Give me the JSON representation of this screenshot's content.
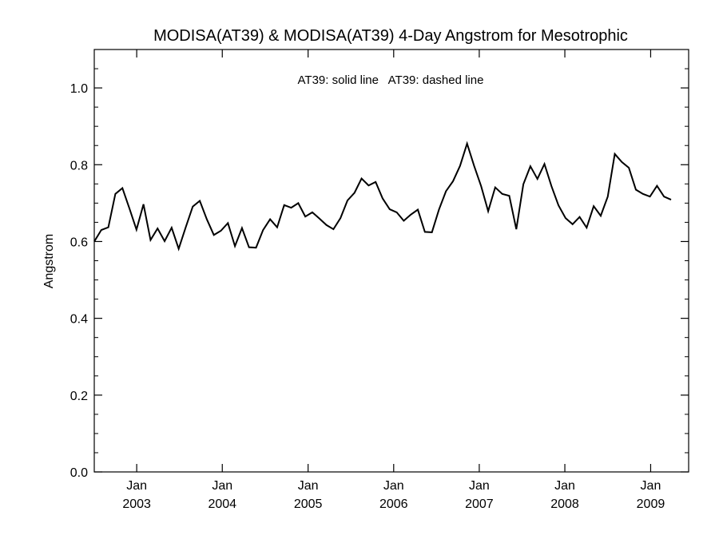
{
  "chart_data": {
    "type": "line",
    "title": "MODISA(AT39) & MODISA(AT39) 4-Day Angstrom for Mesotrophic",
    "ylabel": "Angstrom",
    "legend_text": "AT39: solid line   AT39: dashed line",
    "legend_placement": "top-center",
    "grid": false,
    "xlim": [
      "2002-07-04",
      "2009-06-12"
    ],
    "ylim": [
      0.0,
      1.1
    ],
    "yticks": [
      {
        "value": 0.0,
        "label": "0.0"
      },
      {
        "value": 0.2,
        "label": "0.2"
      },
      {
        "value": 0.4,
        "label": "0.4"
      },
      {
        "value": 0.6,
        "label": "0.6"
      },
      {
        "value": 0.8,
        "label": "0.8"
      },
      {
        "value": 1.0,
        "label": "1.0"
      }
    ],
    "xticks": [
      {
        "date": "2003-01-01",
        "month": "Jan",
        "year": "2003"
      },
      {
        "date": "2004-01-01",
        "month": "Jan",
        "year": "2004"
      },
      {
        "date": "2005-01-01",
        "month": "Jan",
        "year": "2005"
      },
      {
        "date": "2006-01-01",
        "month": "Jan",
        "year": "2006"
      },
      {
        "date": "2007-01-01",
        "month": "Jan",
        "year": "2007"
      },
      {
        "date": "2008-01-01",
        "month": "Jan",
        "year": "2008"
      },
      {
        "date": "2009-01-01",
        "month": "Jan",
        "year": "2009"
      }
    ],
    "series": [
      {
        "line_style": "solid",
        "color": "#000000",
        "points": [
          [
            "2002-07-04",
            0.6
          ],
          [
            "2002-08-03",
            0.63
          ],
          [
            "2002-09-02",
            0.637
          ],
          [
            "2002-10-02",
            0.724
          ],
          [
            "2002-11-01",
            0.739
          ],
          [
            "2002-12-01",
            0.686
          ],
          [
            "2002-12-31",
            0.631
          ],
          [
            "2003-01-30",
            0.697
          ],
          [
            "2003-03-01",
            0.604
          ],
          [
            "2003-03-31",
            0.634
          ],
          [
            "2003-04-30",
            0.601
          ],
          [
            "2003-05-30",
            0.636
          ],
          [
            "2003-06-29",
            0.581
          ],
          [
            "2003-07-29",
            0.637
          ],
          [
            "2003-08-28",
            0.691
          ],
          [
            "2003-09-27",
            0.706
          ],
          [
            "2003-10-27",
            0.658
          ],
          [
            "2003-11-26",
            0.617
          ],
          [
            "2003-12-26",
            0.628
          ],
          [
            "2004-01-25",
            0.648
          ],
          [
            "2004-02-24",
            0.588
          ],
          [
            "2004-03-25",
            0.635
          ],
          [
            "2004-04-24",
            0.585
          ],
          [
            "2004-05-24",
            0.584
          ],
          [
            "2004-06-23",
            0.63
          ],
          [
            "2004-07-23",
            0.658
          ],
          [
            "2004-08-22",
            0.637
          ],
          [
            "2004-09-21",
            0.695
          ],
          [
            "2004-10-21",
            0.688
          ],
          [
            "2004-11-20",
            0.7
          ],
          [
            "2004-12-20",
            0.665
          ],
          [
            "2005-01-19",
            0.676
          ],
          [
            "2005-02-18",
            0.66
          ],
          [
            "2005-03-20",
            0.643
          ],
          [
            "2005-04-19",
            0.632
          ],
          [
            "2005-05-19",
            0.661
          ],
          [
            "2005-06-18",
            0.707
          ],
          [
            "2005-07-18",
            0.727
          ],
          [
            "2005-08-17",
            0.764
          ],
          [
            "2005-09-16",
            0.746
          ],
          [
            "2005-10-16",
            0.755
          ],
          [
            "2005-11-15",
            0.712
          ],
          [
            "2005-12-15",
            0.684
          ],
          [
            "2006-01-14",
            0.676
          ],
          [
            "2006-02-13",
            0.654
          ],
          [
            "2006-03-15",
            0.67
          ],
          [
            "2006-04-14",
            0.683
          ],
          [
            "2006-05-14",
            0.625
          ],
          [
            "2006-06-13",
            0.624
          ],
          [
            "2006-07-13",
            0.683
          ],
          [
            "2006-08-12",
            0.731
          ],
          [
            "2006-09-11",
            0.757
          ],
          [
            "2006-10-11",
            0.797
          ],
          [
            "2006-11-10",
            0.855
          ],
          [
            "2006-12-10",
            0.797
          ],
          [
            "2007-01-09",
            0.744
          ],
          [
            "2007-02-08",
            0.679
          ],
          [
            "2007-03-10",
            0.741
          ],
          [
            "2007-04-09",
            0.724
          ],
          [
            "2007-05-09",
            0.719
          ],
          [
            "2007-06-08",
            0.632
          ],
          [
            "2007-07-08",
            0.749
          ],
          [
            "2007-08-07",
            0.796
          ],
          [
            "2007-09-06",
            0.763
          ],
          [
            "2007-10-06",
            0.802
          ],
          [
            "2007-11-05",
            0.744
          ],
          [
            "2007-12-05",
            0.694
          ],
          [
            "2008-01-04",
            0.661
          ],
          [
            "2008-02-03",
            0.645
          ],
          [
            "2008-03-04",
            0.664
          ],
          [
            "2008-04-03",
            0.636
          ],
          [
            "2008-05-03",
            0.692
          ],
          [
            "2008-06-02",
            0.667
          ],
          [
            "2008-07-02",
            0.717
          ],
          [
            "2008-08-01",
            0.828
          ],
          [
            "2008-08-31",
            0.807
          ],
          [
            "2008-09-30",
            0.792
          ],
          [
            "2008-10-30",
            0.735
          ],
          [
            "2008-11-29",
            0.724
          ],
          [
            "2008-12-29",
            0.717
          ],
          [
            "2009-01-28",
            0.745
          ],
          [
            "2009-02-27",
            0.717
          ],
          [
            "2009-03-29",
            0.709
          ]
        ]
      }
    ]
  }
}
